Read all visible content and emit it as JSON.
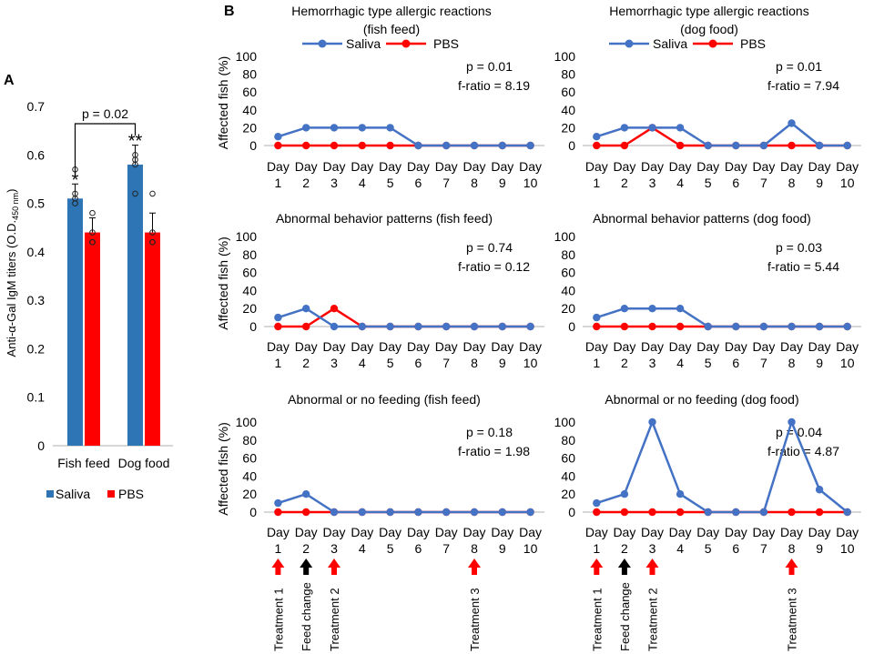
{
  "panel_labels": {
    "a": "A",
    "b": "B"
  },
  "colors": {
    "saliva": "#4472C4",
    "pbs": "#FF0000",
    "bar_saliva": "#2E75B6",
    "bar_pbs": "#FF0000",
    "axis": "#BFBFBF",
    "feed_arrow": "#000000",
    "treat_arrow": "#FF0000"
  },
  "legend": {
    "saliva": "Saliva",
    "pbs": "PBS"
  },
  "arrow_labels": {
    "treatment1": "Treatment 1",
    "feed_change": "Feed change",
    "treatment2": "Treatment 2",
    "treatment3": "Treatment 3"
  },
  "chart_data": [
    {
      "id": "A",
      "type": "bar",
      "title": "",
      "ylabel": "Anti-α-Gal IgM titers (O.D.450 nm)",
      "ylabel_main": "Anti-α-Gal IgM titers (O.D.",
      "ylabel_sub": "450 nm",
      "ylabel_end": ")",
      "ylim": [
        0,
        0.7
      ],
      "yticks": [
        "0",
        "0.1",
        "0.2",
        "0.3",
        "0.4",
        "0.5",
        "0.6",
        "0.7"
      ],
      "categories": [
        "Fish feed",
        "Dog food"
      ],
      "series": [
        {
          "name": "Saliva",
          "values": [
            0.51,
            0.58
          ],
          "errors": [
            0.03,
            0.04
          ],
          "points": [
            [
              0.57,
              0.52,
              0.51,
              0.5
            ],
            [
              0.6,
              0.59,
              0.58,
              0.52
            ]
          ]
        },
        {
          "name": "PBS",
          "values": [
            0.44,
            0.44
          ],
          "errors": [
            0.03,
            0.04
          ],
          "points": [
            [
              0.48,
              0.44,
              0.42,
              0.42
            ],
            [
              0.52,
              0.44,
              0.42,
              0.42
            ]
          ]
        }
      ],
      "significance": [
        "*",
        "**"
      ],
      "bracket_label": "p = 0.02",
      "legend": [
        "Saliva",
        "PBS"
      ]
    },
    {
      "id": "B1",
      "type": "line",
      "title_line1": "Hemorrhagic type allergic reactions",
      "title_line2": "(fish feed)",
      "ylabel": "Affected fish (%)",
      "ylim": [
        0,
        100
      ],
      "yticks": [
        "0",
        "20",
        "40",
        "60",
        "80",
        "100"
      ],
      "x_day": [
        "Day",
        "Day",
        "Day",
        "Day",
        "Day",
        "Day",
        "Day",
        "Day",
        "Day",
        "Day"
      ],
      "x_num": [
        "1",
        "2",
        "3",
        "4",
        "5",
        "6",
        "7",
        "8",
        "9",
        "10"
      ],
      "series": [
        {
          "name": "Saliva",
          "values": [
            10,
            20,
            20,
            20,
            20,
            0,
            0,
            0,
            0,
            0
          ]
        },
        {
          "name": "PBS",
          "values": [
            0,
            0,
            0,
            0,
            0,
            0,
            0,
            0,
            0,
            0
          ]
        }
      ],
      "stat_p": "p = 0.01",
      "stat_f": "f-ratio = 8.19"
    },
    {
      "id": "B2",
      "type": "line",
      "title_line1": "Hemorrhagic type allergic reactions",
      "title_line2": "(dog food)",
      "ylabel": "",
      "ylim": [
        0,
        100
      ],
      "yticks": [
        "0",
        "20",
        "40",
        "60",
        "80",
        "100"
      ],
      "x_day": [
        "Day",
        "Day",
        "Day",
        "Day",
        "Day",
        "Day",
        "Day",
        "Day",
        "Day",
        "Day"
      ],
      "x_num": [
        "1",
        "2",
        "3",
        "4",
        "5",
        "6",
        "7",
        "8",
        "9",
        "10"
      ],
      "series": [
        {
          "name": "Saliva",
          "values": [
            10,
            20,
            20,
            20,
            0,
            0,
            0,
            25,
            0,
            0
          ]
        },
        {
          "name": "PBS",
          "values": [
            0,
            0,
            20,
            0,
            0,
            0,
            0,
            0,
            0,
            0
          ]
        }
      ],
      "stat_p": "p = 0.01",
      "stat_f": "f-ratio = 7.94"
    },
    {
      "id": "B3",
      "type": "line",
      "title_line1": "Abnormal behavior patterns (fish feed)",
      "title_line2": "",
      "ylabel": "Affected fish (%)",
      "ylim": [
        0,
        100
      ],
      "yticks": [
        "0",
        "20",
        "40",
        "60",
        "80",
        "100"
      ],
      "x_day": [
        "Day",
        "Day",
        "Day",
        "Day",
        "Day",
        "Day",
        "Day",
        "Day",
        "Day",
        "Day"
      ],
      "x_num": [
        "1",
        "2",
        "3",
        "4",
        "5",
        "6",
        "7",
        "8",
        "9",
        "10"
      ],
      "series": [
        {
          "name": "Saliva",
          "values": [
            10,
            20,
            0,
            0,
            0,
            0,
            0,
            0,
            0,
            0
          ]
        },
        {
          "name": "PBS",
          "values": [
            0,
            0,
            20,
            0,
            0,
            0,
            0,
            0,
            0,
            0
          ]
        }
      ],
      "stat_p": "p = 0.74",
      "stat_f": "f-ratio = 0.12"
    },
    {
      "id": "B4",
      "type": "line",
      "title_line1": "Abnormal behavior patterns (dog food)",
      "title_line2": "",
      "ylabel": "",
      "ylim": [
        0,
        100
      ],
      "yticks": [
        "0",
        "20",
        "40",
        "60",
        "80",
        "100"
      ],
      "x_day": [
        "Day",
        "Day",
        "Day",
        "Day",
        "Day",
        "Day",
        "Day",
        "Day",
        "Day",
        "Day"
      ],
      "x_num": [
        "1",
        "2",
        "3",
        "4",
        "5",
        "6",
        "7",
        "8",
        "9",
        "10"
      ],
      "series": [
        {
          "name": "Saliva",
          "values": [
            10,
            20,
            20,
            20,
            0,
            0,
            0,
            0,
            0,
            0
          ]
        },
        {
          "name": "PBS",
          "values": [
            0,
            0,
            0,
            0,
            0,
            0,
            0,
            0,
            0,
            0
          ]
        }
      ],
      "stat_p": "p = 0.03",
      "stat_f": "f-ratio = 5.44"
    },
    {
      "id": "B5",
      "type": "line",
      "title_line1": "Abnormal or no feeding (fish feed)",
      "title_line2": "",
      "ylabel": "Affected fish (%)",
      "ylim": [
        0,
        100
      ],
      "yticks": [
        "0",
        "20",
        "40",
        "60",
        "80",
        "100"
      ],
      "x_day": [
        "Day",
        "Day",
        "Day",
        "Day",
        "Day",
        "Day",
        "Day",
        "Day",
        "Day",
        "Day"
      ],
      "x_num": [
        "1",
        "2",
        "3",
        "4",
        "5",
        "6",
        "7",
        "8",
        "9",
        "10"
      ],
      "series": [
        {
          "name": "Saliva",
          "values": [
            10,
            20,
            0,
            0,
            0,
            0,
            0,
            0,
            0,
            0
          ]
        },
        {
          "name": "PBS",
          "values": [
            0,
            0,
            0,
            0,
            0,
            0,
            0,
            0,
            0,
            0
          ]
        }
      ],
      "stat_p": "p = 0.18",
      "stat_f": "f-ratio = 1.98"
    },
    {
      "id": "B6",
      "type": "line",
      "title_line1": "Abnormal or no feeding (dog food)",
      "title_line2": "",
      "ylabel": "",
      "ylim": [
        0,
        100
      ],
      "yticks": [
        "0",
        "20",
        "40",
        "60",
        "80",
        "100"
      ],
      "x_day": [
        "Day",
        "Day",
        "Day",
        "Day",
        "Day",
        "Day",
        "Day",
        "Day",
        "Day",
        "Day"
      ],
      "x_num": [
        "1",
        "2",
        "3",
        "4",
        "5",
        "6",
        "7",
        "8",
        "9",
        "10"
      ],
      "series": [
        {
          "name": "Saliva",
          "values": [
            10,
            20,
            100,
            20,
            0,
            0,
            0,
            100,
            25,
            0
          ]
        },
        {
          "name": "PBS",
          "values": [
            0,
            0,
            0,
            0,
            0,
            0,
            0,
            0,
            0,
            0
          ]
        }
      ],
      "stat_p": "p = 0.04",
      "stat_f": "f-ratio = 4.87"
    }
  ]
}
